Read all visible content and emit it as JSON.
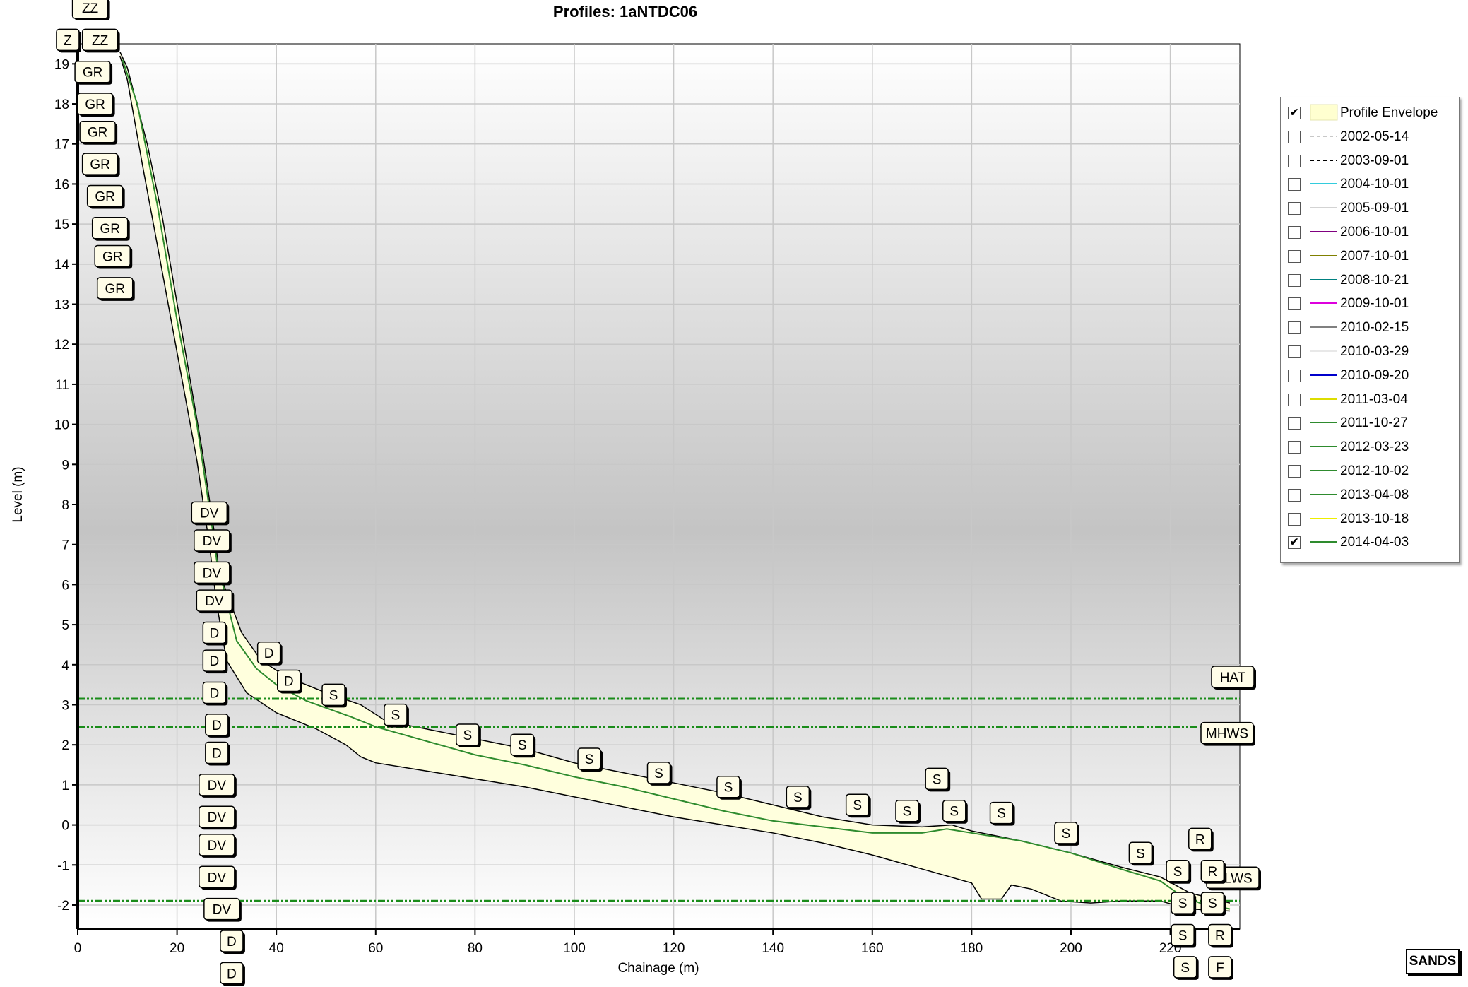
{
  "chart_data": {
    "type": "line",
    "title": "Profiles: 1aNTDC06",
    "xlabel": "Chainage (m)",
    "ylabel": "Level (m)",
    "xlim": [
      0,
      234
    ],
    "ylim": [
      -2.6,
      19.5
    ],
    "x_ticks": [
      0,
      20,
      40,
      60,
      80,
      100,
      120,
      140,
      160,
      180,
      200,
      220
    ],
    "y_ticks": [
      -2,
      -1,
      0,
      1,
      2,
      3,
      4,
      5,
      6,
      7,
      8,
      9,
      10,
      11,
      12,
      13,
      14,
      15,
      16,
      17,
      18,
      19
    ],
    "grid": true,
    "legend_position": "right",
    "series": [
      {
        "name": "2014-04-03",
        "color": "#2e8b2e",
        "visible": true,
        "points": [
          [
            9,
            19.1
          ],
          [
            12,
            18
          ],
          [
            16,
            15.5
          ],
          [
            20,
            12.6
          ],
          [
            24,
            10
          ],
          [
            27,
            7.5
          ],
          [
            28,
            6.6
          ],
          [
            30,
            5.6
          ],
          [
            32,
            4.6
          ],
          [
            36,
            3.9
          ],
          [
            40,
            3.5
          ],
          [
            46,
            3.1
          ],
          [
            55,
            2.7
          ],
          [
            60,
            2.45
          ],
          [
            70,
            2.1
          ],
          [
            80,
            1.75
          ],
          [
            90,
            1.5
          ],
          [
            100,
            1.2
          ],
          [
            110,
            0.95
          ],
          [
            120,
            0.65
          ],
          [
            130,
            0.35
          ],
          [
            140,
            0.1
          ],
          [
            150,
            -0.05
          ],
          [
            160,
            -0.2
          ],
          [
            170,
            -0.2
          ],
          [
            175,
            -0.1
          ],
          [
            180,
            -0.2
          ],
          [
            190,
            -0.4
          ],
          [
            200,
            -0.7
          ],
          [
            210,
            -1.1
          ],
          [
            218,
            -1.4
          ],
          [
            222,
            -1.75
          ],
          [
            226,
            -1.95
          ],
          [
            232,
            -2.1
          ]
        ]
      }
    ],
    "envelope": {
      "name": "Profile Envelope",
      "color": "#ffffdd",
      "visible": true,
      "upper": [
        [
          8.5,
          19.3
        ],
        [
          10,
          18.9
        ],
        [
          14,
          17
        ],
        [
          17,
          15.2
        ],
        [
          21,
          12.3
        ],
        [
          25,
          9.4
        ],
        [
          27.5,
          7.3
        ],
        [
          28.5,
          6.3
        ],
        [
          30,
          5.8
        ],
        [
          33,
          4.8
        ],
        [
          37,
          4.1
        ],
        [
          42,
          3.7
        ],
        [
          50,
          3.3
        ],
        [
          57,
          3
        ],
        [
          62,
          2.6
        ],
        [
          70,
          2.4
        ],
        [
          78,
          2.2
        ],
        [
          90,
          1.9
        ],
        [
          100,
          1.55
        ],
        [
          110,
          1.3
        ],
        [
          120,
          1.05
        ],
        [
          130,
          0.8
        ],
        [
          140,
          0.5
        ],
        [
          150,
          0.2
        ],
        [
          160,
          0
        ],
        [
          170,
          -0.05
        ],
        [
          176,
          0
        ],
        [
          180,
          -0.15
        ],
        [
          190,
          -0.4
        ],
        [
          200,
          -0.7
        ],
        [
          210,
          -1.05
        ],
        [
          218,
          -1.3
        ],
        [
          224,
          -1.7
        ],
        [
          232,
          -1.95
        ]
      ],
      "lower": [
        [
          8.5,
          19.2
        ],
        [
          10,
          18.6
        ],
        [
          13,
          16.5
        ],
        [
          16,
          14.5
        ],
        [
          20,
          11.8
        ],
        [
          24,
          9.1
        ],
        [
          26.5,
          7
        ],
        [
          28,
          5.5
        ],
        [
          30,
          4.1
        ],
        [
          34,
          3.3
        ],
        [
          40,
          2.8
        ],
        [
          48,
          2.4
        ],
        [
          54,
          2
        ],
        [
          57,
          1.7
        ],
        [
          60,
          1.55
        ],
        [
          70,
          1.35
        ],
        [
          80,
          1.15
        ],
        [
          90,
          0.95
        ],
        [
          100,
          0.7
        ],
        [
          110,
          0.45
        ],
        [
          120,
          0.2
        ],
        [
          130,
          0
        ],
        [
          140,
          -0.2
        ],
        [
          150,
          -0.45
        ],
        [
          160,
          -0.75
        ],
        [
          170,
          -1.1
        ],
        [
          180,
          -1.45
        ],
        [
          182,
          -1.85
        ],
        [
          186,
          -1.85
        ],
        [
          188,
          -1.5
        ],
        [
          192,
          -1.6
        ],
        [
          198,
          -1.9
        ],
        [
          204,
          -1.95
        ],
        [
          210,
          -1.9
        ],
        [
          218,
          -1.9
        ],
        [
          224,
          -2.1
        ],
        [
          232,
          -2.15
        ]
      ]
    },
    "tide_levels": [
      {
        "name": "HAT",
        "level": 3.15
      },
      {
        "name": "MHWS",
        "level": 2.45
      },
      {
        "name": "MLWS",
        "level": -1.9
      }
    ],
    "point_labels": [
      {
        "text": "ZZ",
        "x": 2.5,
        "y": 20.4
      },
      {
        "text": "Z",
        "x": -2,
        "y": 19.6
      },
      {
        "text": "ZZ",
        "x": 4.5,
        "y": 19.6
      },
      {
        "text": "GR",
        "x": 3,
        "y": 18.8
      },
      {
        "text": "GR",
        "x": 3.5,
        "y": 18
      },
      {
        "text": "GR",
        "x": 4,
        "y": 17.3
      },
      {
        "text": "GR",
        "x": 4.5,
        "y": 16.5
      },
      {
        "text": "GR",
        "x": 5.5,
        "y": 15.7
      },
      {
        "text": "GR",
        "x": 6.5,
        "y": 14.9
      },
      {
        "text": "GR",
        "x": 7,
        "y": 14.2
      },
      {
        "text": "GR",
        "x": 7.5,
        "y": 13.4
      },
      {
        "text": "DV",
        "x": 26.5,
        "y": 7.8
      },
      {
        "text": "DV",
        "x": 27,
        "y": 7.1
      },
      {
        "text": "DV",
        "x": 27,
        "y": 6.3
      },
      {
        "text": "DV",
        "x": 27.5,
        "y": 5.6
      },
      {
        "text": "D",
        "x": 27.5,
        "y": 4.8
      },
      {
        "text": "D",
        "x": 27.5,
        "y": 4.1
      },
      {
        "text": "D",
        "x": 27.5,
        "y": 3.3
      },
      {
        "text": "D",
        "x": 28,
        "y": 2.5
      },
      {
        "text": "D",
        "x": 28,
        "y": 1.8
      },
      {
        "text": "DV",
        "x": 28,
        "y": 1
      },
      {
        "text": "DV",
        "x": 28,
        "y": 0.2
      },
      {
        "text": "DV",
        "x": 28,
        "y": -0.5
      },
      {
        "text": "DV",
        "x": 28,
        "y": -1.3
      },
      {
        "text": "DV",
        "x": 29,
        "y": -2.1
      },
      {
        "text": "D",
        "x": 31,
        "y": -2.9
      },
      {
        "text": "D",
        "x": 31,
        "y": -3.7
      },
      {
        "text": "D",
        "x": 38.5,
        "y": 4.3
      },
      {
        "text": "D",
        "x": 42.5,
        "y": 3.6
      },
      {
        "text": "S",
        "x": 51.5,
        "y": 3.25
      },
      {
        "text": "S",
        "x": 64,
        "y": 2.75
      },
      {
        "text": "S",
        "x": 78.5,
        "y": 2.25
      },
      {
        "text": "S",
        "x": 89.5,
        "y": 2
      },
      {
        "text": "S",
        "x": 103,
        "y": 1.65
      },
      {
        "text": "S",
        "x": 117,
        "y": 1.3
      },
      {
        "text": "S",
        "x": 131,
        "y": 0.95
      },
      {
        "text": "S",
        "x": 145,
        "y": 0.7
      },
      {
        "text": "S",
        "x": 157,
        "y": 0.5
      },
      {
        "text": "S",
        "x": 167,
        "y": 0.35
      },
      {
        "text": "S",
        "x": 173,
        "y": 1.15
      },
      {
        "text": "S",
        "x": 176.5,
        "y": 0.35
      },
      {
        "text": "S",
        "x": 186,
        "y": 0.3
      },
      {
        "text": "S",
        "x": 199,
        "y": -0.2
      },
      {
        "text": "S",
        "x": 214,
        "y": -0.7
      },
      {
        "text": "R",
        "x": 226,
        "y": -0.35
      },
      {
        "text": "S",
        "x": 221.5,
        "y": -1.15
      },
      {
        "text": "R",
        "x": 228.5,
        "y": -1.15
      },
      {
        "text": "S",
        "x": 222.5,
        "y": -1.95
      },
      {
        "text": "S",
        "x": 228.5,
        "y": -1.95
      },
      {
        "text": "S",
        "x": 222.5,
        "y": -2.75
      },
      {
        "text": "R",
        "x": 230,
        "y": -2.75
      },
      {
        "text": "S",
        "x": 223,
        "y": -3.55
      },
      {
        "text": "F",
        "x": 230,
        "y": -3.55
      }
    ]
  },
  "legend": {
    "items": [
      {
        "label": "Profile Envelope",
        "checked": true,
        "style": "fill",
        "color": "#ffffd0"
      },
      {
        "label": "2002-05-14",
        "checked": false,
        "style": "dash",
        "color": "#c8c8c8"
      },
      {
        "label": "2003-09-01",
        "checked": false,
        "style": "dash",
        "color": "#000000"
      },
      {
        "label": "2004-10-01",
        "checked": false,
        "style": "line",
        "color": "#33ccdd"
      },
      {
        "label": "2005-09-01",
        "checked": false,
        "style": "line",
        "color": "#d3d3d3"
      },
      {
        "label": "2006-10-01",
        "checked": false,
        "style": "line",
        "color": "#800080"
      },
      {
        "label": "2007-10-01",
        "checked": false,
        "style": "line",
        "color": "#808000"
      },
      {
        "label": "2008-10-21",
        "checked": false,
        "style": "line",
        "color": "#008080"
      },
      {
        "label": "2009-10-01",
        "checked": false,
        "style": "line",
        "color": "#dd00dd"
      },
      {
        "label": "2010-02-15",
        "checked": false,
        "style": "line",
        "color": "#808080"
      },
      {
        "label": "2010-03-29",
        "checked": false,
        "style": "line",
        "color": "#e8e8e8"
      },
      {
        "label": "2010-09-20",
        "checked": false,
        "style": "line",
        "color": "#0000cc"
      },
      {
        "label": "2011-03-04",
        "checked": false,
        "style": "line",
        "color": "#dddd00"
      },
      {
        "label": "2011-10-27",
        "checked": false,
        "style": "line",
        "color": "#2e8b2e"
      },
      {
        "label": "2012-03-23",
        "checked": false,
        "style": "line",
        "color": "#2e8b2e"
      },
      {
        "label": "2012-10-02",
        "checked": false,
        "style": "line",
        "color": "#2e8b2e"
      },
      {
        "label": "2013-04-08",
        "checked": false,
        "style": "line",
        "color": "#2e8b2e"
      },
      {
        "label": "2013-10-18",
        "checked": false,
        "style": "line",
        "color": "#eeee00"
      },
      {
        "label": "2014-04-03",
        "checked": true,
        "style": "line",
        "color": "#2e8b2e"
      }
    ]
  },
  "badge": {
    "text": "SANDS"
  },
  "colors": {
    "tide_line": "#1a8c1a",
    "envelope_outline": "#000000",
    "grid": "#c8c8c8",
    "plot_gradient_top": "#ffffff",
    "plot_gradient_mid": "#c8c8c8"
  }
}
